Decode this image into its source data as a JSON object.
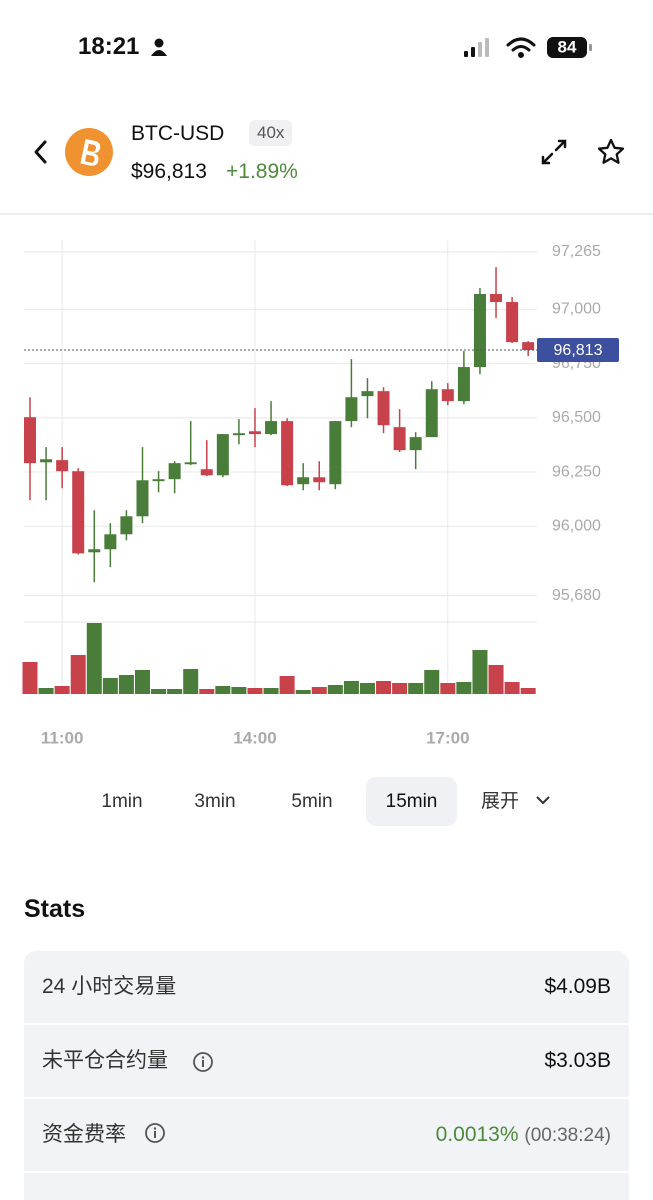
{
  "status": {
    "time": "18:21",
    "battery": "84"
  },
  "header": {
    "symbol": "BTC-USD",
    "leverage": "40x",
    "price": "$96,813",
    "change": "+1.89%"
  },
  "chart_data": {
    "type": "candlestick",
    "categories": [
      null,
      null,
      "11:00",
      null,
      null,
      null,
      null,
      null,
      null,
      null,
      null,
      null,
      null,
      null,
      "14:00",
      null,
      null,
      null,
      null,
      null,
      null,
      null,
      null,
      null,
      null,
      null,
      "17:00",
      null,
      null,
      null,
      null,
      null
    ],
    "open": [
      96503,
      96295,
      96305,
      96254,
      95880,
      95894,
      95963,
      96046,
      96208,
      96217,
      96286,
      96263,
      96235,
      96420,
      96438,
      96425,
      96485,
      96194,
      96226,
      96194,
      96485,
      96600,
      96623,
      96457,
      96351,
      96411,
      96632,
      96577,
      96734,
      97071,
      97034,
      96849
    ],
    "high": [
      96595,
      96365,
      96365,
      96268,
      96074,
      96014,
      96074,
      96365,
      96254,
      96300,
      96485,
      96397,
      96425,
      96494,
      96545,
      96577,
      96498,
      96291,
      96300,
      96485,
      96771,
      96683,
      96641,
      96540,
      96434,
      96669,
      96660,
      96808,
      97098,
      97195,
      97057,
      96854
    ],
    "low": [
      96120,
      96120,
      96175,
      95870,
      95742,
      95811,
      95935,
      96014,
      96157,
      96152,
      96282,
      96231,
      96226,
      96378,
      96365,
      96420,
      96185,
      96166,
      96166,
      96171,
      96457,
      96498,
      96429,
      96342,
      96263,
      96411,
      96558,
      96563,
      96701,
      96960,
      96845,
      96785
    ],
    "close": [
      96291,
      96309,
      96254,
      95875,
      95894,
      95963,
      96046,
      96212,
      96217,
      96291,
      96295,
      96235,
      96425,
      96429,
      96425,
      96485,
      96189,
      96226,
      96203,
      96485,
      96595,
      96623,
      96466,
      96351,
      96411,
      96632,
      96577,
      96734,
      97071,
      97034,
      96849,
      96813
    ],
    "volume": [
      32,
      6,
      8,
      39,
      71,
      16,
      19,
      24,
      5,
      5,
      25,
      5,
      8,
      7,
      6,
      6,
      18,
      4,
      7,
      9,
      13,
      11,
      13,
      11,
      11,
      24,
      11,
      12,
      44,
      29,
      12,
      6
    ],
    "up_color": "#4a7c3a",
    "down_color": "#c8424c",
    "ylim": [
      95660,
      97320
    ],
    "yticks": [
      {
        "value": 97265,
        "label": "97,265"
      },
      {
        "value": 97000,
        "label": "97,000"
      },
      {
        "value": 96750,
        "label": "96,750"
      },
      {
        "value": 96500,
        "label": "96,500"
      },
      {
        "value": 96250,
        "label": "96,250"
      },
      {
        "value": 96000,
        "label": "96,000"
      },
      {
        "value": 95680,
        "label": "95,680"
      }
    ],
    "vlim": [
      0,
      75
    ],
    "current_price": {
      "value": 96813,
      "label": "96,813"
    },
    "grid": true
  },
  "intervals": [
    "1min",
    "3min",
    "5min",
    "15min",
    "展开"
  ],
  "selected_interval": "15min",
  "stats": {
    "title": "Stats",
    "rows": [
      [
        "24 小时交易量",
        "$4.09B"
      ],
      [
        "未平仓合约量",
        "$3.03B"
      ],
      [
        "资金费率",
        "0.0013%",
        "(00:38:24)"
      ]
    ]
  }
}
